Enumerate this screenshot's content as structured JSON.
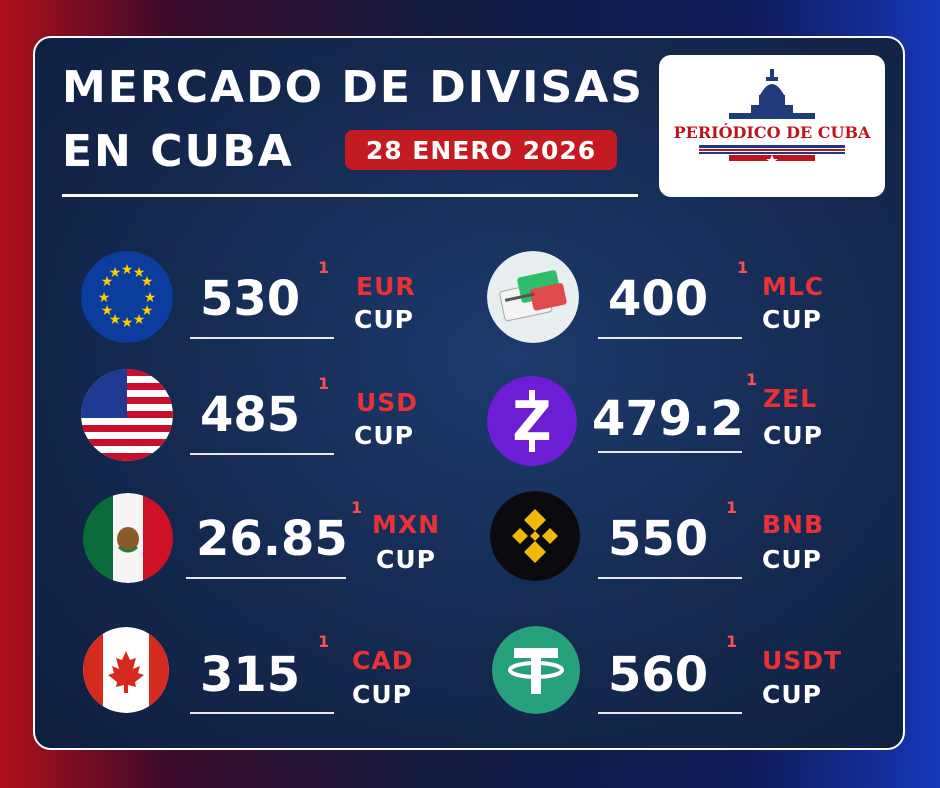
{
  "header": {
    "title_line1": "MERCADO DE DIVISAS",
    "title_line2": "EN CUBA",
    "date": "28 ENERO 2026",
    "logo_text": "PERIÓDICO DE CUBA"
  },
  "rates": [
    {
      "currency": "EUR",
      "value": "530",
      "unit": "CUP",
      "note": "1",
      "icon": "eu-flag-icon"
    },
    {
      "currency": "MLC",
      "value": "400",
      "unit": "CUP",
      "note": "1",
      "icon": "bank-cards-icon"
    },
    {
      "currency": "USD",
      "value": "485",
      "unit": "CUP",
      "note": "1",
      "icon": "usa-flag-icon"
    },
    {
      "currency": "ZEL",
      "value": "479.2",
      "unit": "CUP",
      "note": "1",
      "icon": "zelle-icon"
    },
    {
      "currency": "MXN",
      "value": "26.85",
      "unit": "CUP",
      "note": "1",
      "icon": "mexico-flag-icon"
    },
    {
      "currency": "BNB",
      "value": "550",
      "unit": "CUP",
      "note": "1",
      "icon": "binance-icon"
    },
    {
      "currency": "CAD",
      "value": "315",
      "unit": "CUP",
      "note": "1",
      "icon": "canada-flag-icon"
    },
    {
      "currency": "USDT",
      "value": "560",
      "unit": "CUP",
      "note": "1",
      "icon": "tether-icon"
    }
  ],
  "colors": {
    "accent_red": "#c41a22",
    "panel_blue": "#14294f",
    "zelle_purple": "#6d1ed4",
    "binance_yellow": "#f0b90b",
    "tether_green": "#26a17b"
  }
}
